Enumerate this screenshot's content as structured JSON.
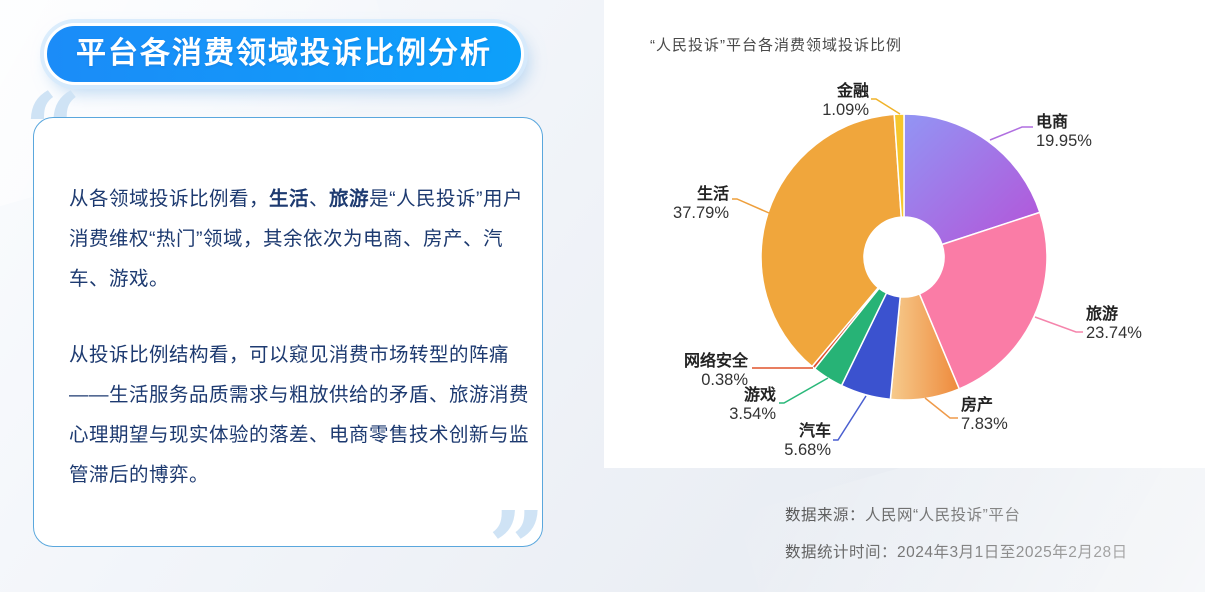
{
  "theme": {
    "badge_blue_start": "#1b8cf8",
    "badge_blue_end": "#0da0fa",
    "card_border": "#5aa7dd",
    "text_navy": "#1d3a70",
    "quote_blue": "#cfe3f5"
  },
  "header": {
    "badge_title": "平台各消费领域投诉比例分析"
  },
  "card": {
    "open_quote": "“",
    "close_quote": "”",
    "paragraphs": [
      {
        "segments": [
          {
            "t": "从各领域投诉比例看，"
          },
          {
            "t": "生活",
            "bold": true
          },
          {
            "t": "、"
          },
          {
            "t": "旅游",
            "bold": true
          },
          {
            "t": "是“人民投诉”用户消费维权“热门”领域，其余依次为电商、房产、汽车、游戏。"
          }
        ]
      },
      {
        "segments": [
          {
            "t": "从投诉比例结构看，可以窥见消费市场转型的阵痛——生活服务品质需求与粗放供给的矛盾、旅游消费心理期望与现实体验的落差、电商零售技术创新与监管滞后的博弈。"
          }
        ]
      }
    ]
  },
  "chart_data": {
    "type": "pie",
    "variant": "donut",
    "title": "“人民投诉”平台各消费领域投诉比例",
    "legend_position": "none",
    "label_style": "outside-leader-lines",
    "slices": [
      {
        "id": "ecommerce",
        "label": "电商",
        "value": 19.95,
        "pct_label": "19.95%",
        "color": [
          "#9295f4",
          "#b453d8"
        ],
        "line_color": "#b06fe0"
      },
      {
        "id": "travel",
        "label": "旅游",
        "value": 23.74,
        "pct_label": "23.74%",
        "color": "#fa7ca6",
        "line_color": "#f585ac"
      },
      {
        "id": "realestate",
        "label": "房产",
        "value": 7.83,
        "pct_label": "7.83%",
        "color": [
          "#f6cb8d",
          "#ee8a3c"
        ],
        "line_color": "#ef9a4a"
      },
      {
        "id": "auto",
        "label": "汽车",
        "value": 5.68,
        "pct_label": "5.68%",
        "color": "#3b52cf",
        "line_color": "#4a5fd0"
      },
      {
        "id": "game",
        "label": "游戏",
        "value": 3.54,
        "pct_label": "3.54%",
        "color": "#27b376",
        "line_color": "#2ab87a"
      },
      {
        "id": "cybersecurity",
        "label": "网络安全",
        "value": 0.38,
        "pct_label": "0.38%",
        "color": "#e1512d",
        "line_color": "#e0542c"
      },
      {
        "id": "life",
        "label": "生活",
        "value": 37.79,
        "pct_label": "37.79%",
        "color": "#f0a63c",
        "line_color": "#ee9f3c"
      },
      {
        "id": "finance",
        "label": "金融",
        "value": 1.09,
        "pct_label": "1.09%",
        "color": "#f6c62c",
        "line_color": "#f0b32a"
      }
    ],
    "source_line1": "数据来源：人民网“人民投诉”平台",
    "source_line2": "数据统计时间：2024年3月1日至2025年2月28日"
  }
}
